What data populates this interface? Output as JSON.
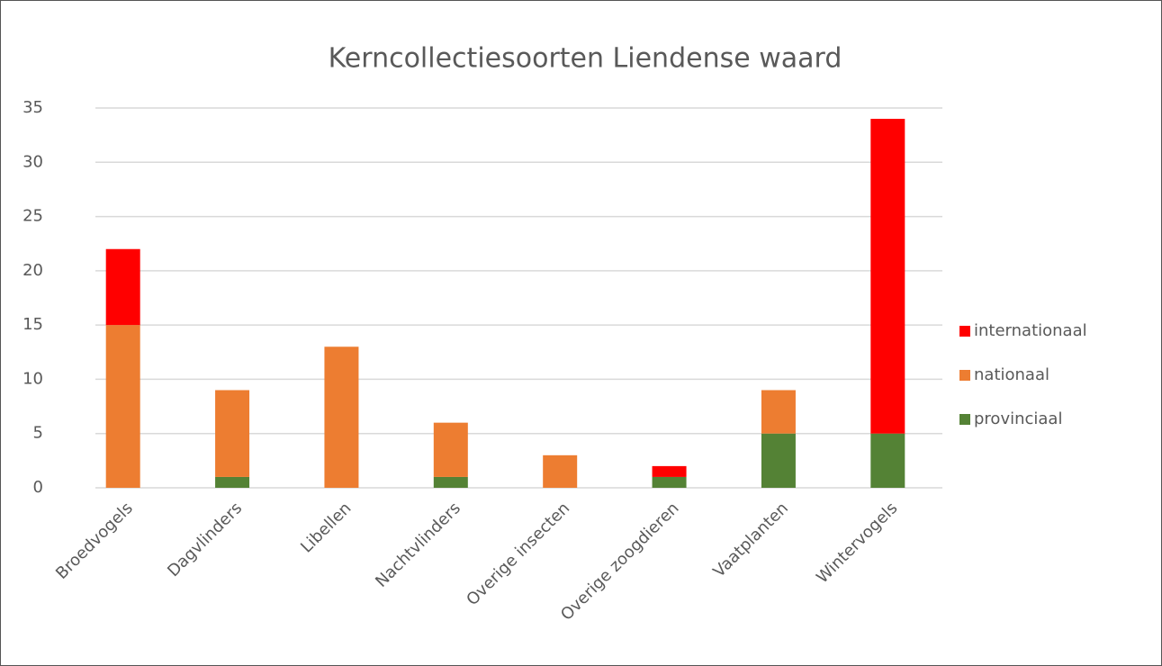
{
  "chart_data": {
    "type": "stacked_bar",
    "title": "Kerncollectiesoorten Liendense waard",
    "categories": [
      "Broedvogels",
      "Dagvlinders",
      "Libellen",
      "Nachtvlinders",
      "Overige insecten",
      "Overige zoogdieren",
      "Vaatplanten",
      "Wintervogels"
    ],
    "series": [
      {
        "name": "provinciaal",
        "color": "#548235",
        "values": [
          0,
          1,
          0,
          1,
          0,
          1,
          5,
          5
        ]
      },
      {
        "name": "nationaal",
        "color": "#ed7d31",
        "values": [
          15,
          8,
          13,
          5,
          3,
          0,
          4,
          0
        ]
      },
      {
        "name": "internationaal",
        "color": "#ff0000",
        "values": [
          7,
          0,
          0,
          0,
          0,
          1,
          0,
          29
        ]
      }
    ],
    "ylim": [
      0,
      35
    ],
    "yticks": [
      0,
      5,
      10,
      15,
      20,
      25,
      30,
      35
    ],
    "grid": true,
    "legend": "right"
  }
}
